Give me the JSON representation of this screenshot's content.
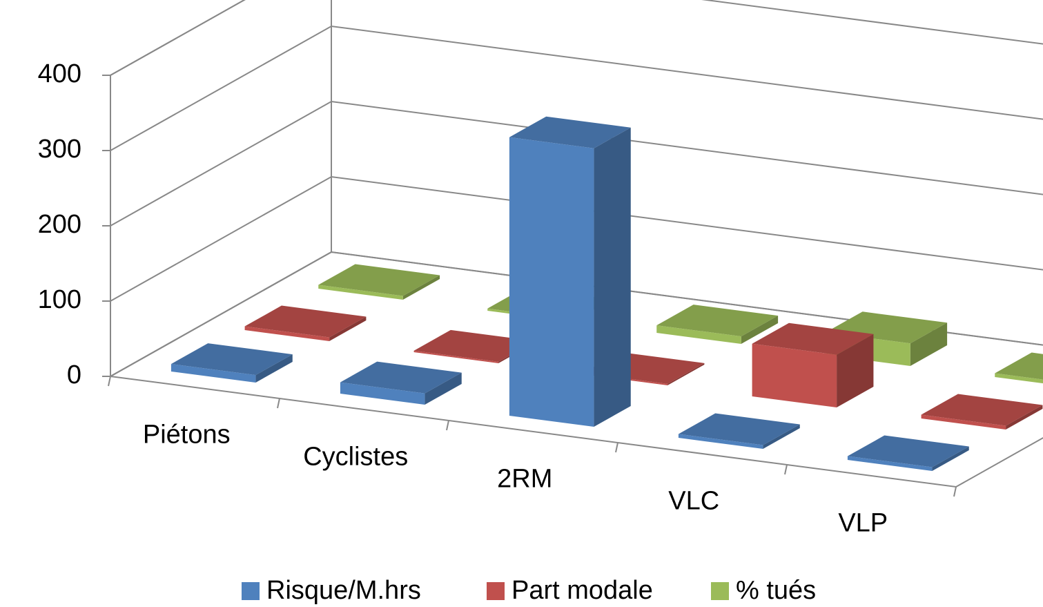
{
  "chart_data": {
    "type": "bar3d",
    "categories": [
      "Piétons",
      "Cyclistes",
      "2RM",
      "VLC",
      "VLP"
    ],
    "series": [
      {
        "name": "Risque/M.hrs",
        "color": "#4f81bd",
        "values": [
          10,
          15,
          370,
          5,
          5
        ]
      },
      {
        "name": "Part modale",
        "color": "#c0504d",
        "values": [
          5,
          2,
          2,
          70,
          5
        ]
      },
      {
        "name": "% tués",
        "color": "#9bbb59",
        "values": [
          5,
          3,
          10,
          30,
          5
        ]
      }
    ],
    "ylim": [
      0,
      400
    ],
    "yticks": [
      0,
      100,
      200,
      300,
      400
    ],
    "grid": true,
    "legend": "bottom"
  }
}
